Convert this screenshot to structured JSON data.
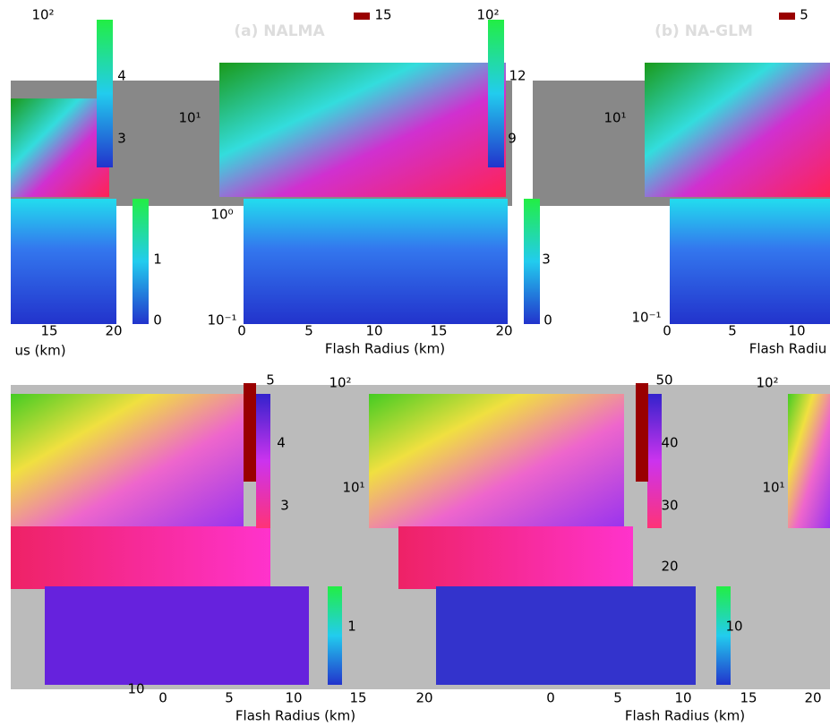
{
  "top_left": {
    "title": "(a) NALMA",
    "colorbar_max": "15",
    "axis_label_fragment": "us (km)",
    "y_ticks": [
      "10²",
      "10¹",
      "10⁰",
      "10⁻¹"
    ],
    "colorbar_ticks": [
      "4",
      "3",
      "1",
      "0"
    ],
    "x_ticks": [
      "0",
      "5",
      "10",
      "15",
      "20"
    ],
    "x_tick_fragments": [
      "15",
      "20"
    ],
    "x_label": "Flash Radius (km)"
  },
  "top_right": {
    "title": "(b) NA-GLM",
    "colorbar_max": "5",
    "y_ticks": [
      "10²",
      "10¹",
      "10⁻¹"
    ],
    "colorbar_ticks": [
      "12",
      "9",
      "3",
      "0"
    ],
    "x_ticks": [
      "0",
      "5",
      "10"
    ],
    "x_label": "Flash Radiu"
  },
  "bottom_left": {
    "colorbar_max": "5",
    "y_ticks": [
      "10²",
      "10¹"
    ],
    "colorbar_ticks": [
      "4",
      "3",
      "1"
    ],
    "x_ticks": [
      "0",
      "5",
      "10",
      "15",
      "20"
    ],
    "x_tick_fragments": [
      "10"
    ],
    "x_label": "Flash Radius (km)"
  },
  "bottom_right": {
    "y_ticks": [
      "10²",
      "10¹"
    ],
    "colorbar_ticks": [
      "50",
      "40",
      "30",
      "20",
      "10"
    ],
    "x_ticks": [
      "0",
      "5",
      "10",
      "15",
      "20"
    ],
    "x_label": "Flash Radius (km)"
  }
}
